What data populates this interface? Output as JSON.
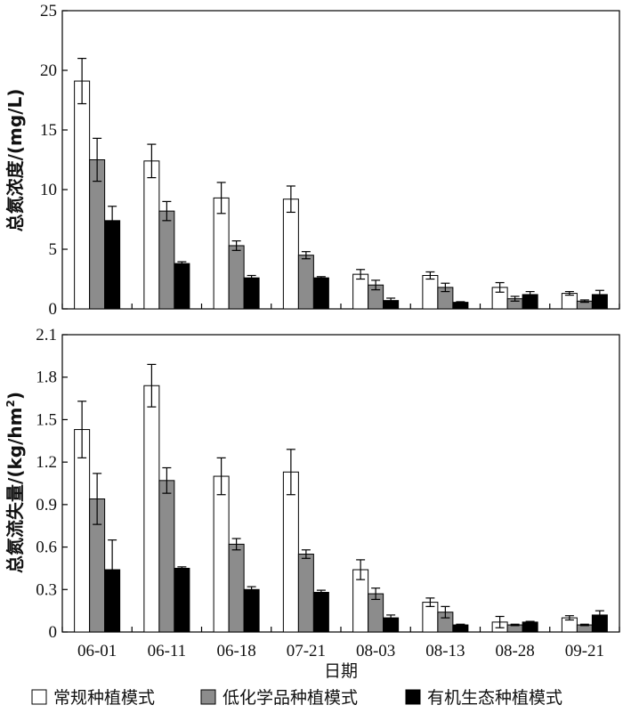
{
  "figure": {
    "xlabel": "日期",
    "legend": {
      "placement": "bottom",
      "items": [
        "常规种植模式",
        "低化学品种植模式",
        "有机生态种植模式"
      ]
    }
  },
  "series_colors": [
    "#ffffff",
    "#8c8c8c",
    "#000000"
  ],
  "chart_data": [
    {
      "type": "bar",
      "categories": [
        "06-01",
        "06-11",
        "06-18",
        "07-21",
        "08-03",
        "08-13",
        "08-28",
        "09-21"
      ],
      "ylabel": "总氮浓度/(mg/L)",
      "ylim": [
        0,
        25
      ],
      "yticks": [
        0,
        5,
        10,
        15,
        20,
        25
      ],
      "ytick_labels": [
        "0",
        "5",
        "10",
        "15",
        "20",
        "25"
      ],
      "grid": false,
      "series": [
        {
          "name": "常规种植模式",
          "values": [
            19.1,
            12.4,
            9.3,
            9.2,
            2.9,
            2.8,
            1.8,
            1.3
          ],
          "errors": [
            1.9,
            1.4,
            1.3,
            1.1,
            0.4,
            0.3,
            0.4,
            0.15
          ]
        },
        {
          "name": "低化学品种植模式",
          "values": [
            12.5,
            8.2,
            5.3,
            4.5,
            2.0,
            1.8,
            0.85,
            0.65
          ],
          "errors": [
            1.8,
            0.8,
            0.4,
            0.3,
            0.4,
            0.35,
            0.2,
            0.1
          ]
        },
        {
          "name": "有机生态种植模式",
          "values": [
            7.4,
            3.8,
            2.6,
            2.6,
            0.7,
            0.55,
            1.2,
            1.2
          ],
          "errors": [
            1.2,
            0.15,
            0.2,
            0.1,
            0.2,
            0.05,
            0.25,
            0.35
          ]
        }
      ]
    },
    {
      "type": "bar",
      "categories": [
        "06-01",
        "06-11",
        "06-18",
        "07-21",
        "08-03",
        "08-13",
        "08-28",
        "09-21"
      ],
      "ylabel_main": "总氮流失量/(kg/hm",
      "ylabel_sup": "2",
      "ylabel_tail": ")",
      "ylim": [
        0,
        2.1
      ],
      "yticks": [
        0,
        0.3,
        0.6,
        0.9,
        1.2,
        1.5,
        1.8,
        2.1
      ],
      "ytick_labels": [
        "0",
        "0.3",
        "0.6",
        "0.9",
        "1.2",
        "1.5",
        "1.8",
        "2.1"
      ],
      "grid": false,
      "series": [
        {
          "name": "常规种植模式",
          "values": [
            1.43,
            1.74,
            1.1,
            1.13,
            0.44,
            0.21,
            0.07,
            0.1
          ],
          "errors": [
            0.2,
            0.15,
            0.13,
            0.16,
            0.07,
            0.03,
            0.04,
            0.015
          ]
        },
        {
          "name": "低化学品种植模式",
          "values": [
            0.94,
            1.07,
            0.62,
            0.55,
            0.27,
            0.14,
            0.05,
            0.05
          ],
          "errors": [
            0.18,
            0.09,
            0.04,
            0.03,
            0.04,
            0.04,
            0.005,
            0.005
          ]
        },
        {
          "name": "有机生态种植模式",
          "values": [
            0.44,
            0.45,
            0.3,
            0.28,
            0.1,
            0.05,
            0.07,
            0.12
          ],
          "errors": [
            0.21,
            0.01,
            0.02,
            0.015,
            0.02,
            0.005,
            0.005,
            0.03
          ]
        }
      ]
    }
  ]
}
